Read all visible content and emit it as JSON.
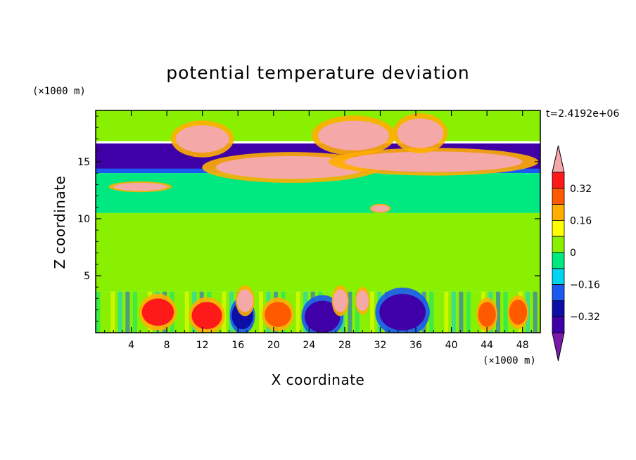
{
  "chart_data": {
    "type": "heatmap",
    "title": "potential temperature deviation",
    "xlabel": "X coordinate",
    "ylabel": "Z coordinate",
    "x_unit": "(×1000 m)",
    "y_unit": "(×1000 m)",
    "time_label": "t=2.4192e+06",
    "xlim": [
      0,
      50
    ],
    "ylim": [
      0,
      19.5
    ],
    "x_ticks": [
      4,
      8,
      12,
      16,
      20,
      24,
      28,
      32,
      36,
      40,
      44,
      48
    ],
    "x_tick_labels": [
      "4",
      "8",
      "12",
      "16",
      "20",
      "24",
      "28",
      "32",
      "36",
      "40",
      "44",
      "48"
    ],
    "y_ticks": [
      5,
      10,
      15
    ],
    "y_tick_labels": [
      "5",
      "10",
      "15"
    ],
    "colorbar": {
      "levels": [
        -0.4,
        -0.32,
        -0.24,
        -0.16,
        -0.08,
        0,
        0.08,
        0.16,
        0.24,
        0.32,
        0.4
      ],
      "labeled_levels": [
        0.32,
        0.16,
        0,
        -0.16,
        -0.32
      ],
      "labels": [
        "0.32",
        "0.16",
        "0",
        "−0.16",
        "−0.32"
      ],
      "colors": [
        "#7a1aa8",
        "#3f00a8",
        "#0d0da8",
        "#1a5af0",
        "#00d4f0",
        "#00e880",
        "#88f000",
        "#ffff00",
        "#ffae00",
        "#ff5a00",
        "#ff1a1a",
        "#f5a8a8"
      ],
      "extend": "both"
    },
    "regions": [
      {
        "kind": "band",
        "name": "upper-light-green",
        "x": [
          0,
          50
        ],
        "z": [
          16.8,
          19.5
        ],
        "value": 0.05
      },
      {
        "kind": "band",
        "name": "strat-cold-band",
        "x": [
          0,
          50
        ],
        "z": [
          14.2,
          16.6
        ],
        "value": -0.38
      },
      {
        "kind": "band",
        "name": "strat-blue-edge",
        "x": [
          0,
          50
        ],
        "z": [
          14.0,
          14.4
        ],
        "value": -0.2
      },
      {
        "kind": "band",
        "name": "mid-green",
        "x": [
          0,
          50
        ],
        "z": [
          10.5,
          14.0
        ],
        "value": -0.02
      },
      {
        "kind": "band",
        "name": "lower-light-green",
        "x": [
          0,
          50
        ],
        "z": [
          3.6,
          10.5
        ],
        "value": 0.04
      },
      {
        "kind": "band",
        "name": "boundary-layer",
        "x": [
          0,
          50
        ],
        "z": [
          0,
          3.6
        ],
        "value": 0.0
      },
      {
        "kind": "blob",
        "name": "warm-tongue-1",
        "cx": 22.0,
        "cz": 14.5,
        "rx": 8.5,
        "rz": 1.0,
        "value": 0.42
      },
      {
        "kind": "blob",
        "name": "warm-tongue-2",
        "cx": 38.0,
        "cz": 15.0,
        "rx": 10.0,
        "rz": 0.9,
        "value": 0.42
      },
      {
        "kind": "blob",
        "name": "warm-cap-1",
        "cx": 12.0,
        "cz": 17.0,
        "rx": 3.0,
        "rz": 1.2,
        "value": 0.42
      },
      {
        "kind": "blob",
        "name": "warm-cap-2",
        "cx": 29.0,
        "cz": 17.3,
        "rx": 4.0,
        "rz": 1.3,
        "value": 0.42
      },
      {
        "kind": "blob",
        "name": "warm-cap-3",
        "cx": 36.5,
        "cz": 17.5,
        "rx": 2.6,
        "rz": 1.3,
        "value": 0.42
      },
      {
        "kind": "blob",
        "name": "warm-left-1",
        "cx": 5.0,
        "cz": 12.8,
        "rx": 3.0,
        "rz": 0.35,
        "value": 0.42
      },
      {
        "kind": "blob",
        "name": "warm-small",
        "cx": 32.0,
        "cz": 10.9,
        "rx": 1.0,
        "rz": 0.3,
        "value": 0.42
      },
      {
        "kind": "blob",
        "name": "cold-cell-1",
        "cx": 25.5,
        "cz": 1.4,
        "rx": 2.0,
        "rz": 1.4,
        "value": -0.38
      },
      {
        "kind": "blob",
        "name": "cold-cell-2",
        "cx": 34.5,
        "cz": 1.8,
        "rx": 2.6,
        "rz": 1.6,
        "value": -0.38
      },
      {
        "kind": "blob",
        "name": "cold-cell-3",
        "cx": 16.5,
        "cz": 1.5,
        "rx": 1.2,
        "rz": 1.2,
        "value": -0.32
      },
      {
        "kind": "blob",
        "name": "warm-cell-1",
        "cx": 12.5,
        "cz": 1.5,
        "rx": 1.7,
        "rz": 1.2,
        "value": 0.35
      },
      {
        "kind": "blob",
        "name": "warm-cell-2",
        "cx": 7.0,
        "cz": 1.8,
        "rx": 1.8,
        "rz": 1.2,
        "value": 0.35
      },
      {
        "kind": "blob",
        "name": "warm-cell-3",
        "cx": 20.5,
        "cz": 1.6,
        "rx": 1.5,
        "rz": 1.1,
        "value": 0.3
      },
      {
        "kind": "blob",
        "name": "warm-cell-4",
        "cx": 44.0,
        "cz": 1.6,
        "rx": 1.0,
        "rz": 1.1,
        "value": 0.3
      },
      {
        "kind": "blob",
        "name": "warm-cell-5",
        "cx": 47.5,
        "cz": 1.8,
        "rx": 1.0,
        "rz": 1.1,
        "value": 0.3
      },
      {
        "kind": "blob",
        "name": "thermal-1",
        "cx": 16.8,
        "cz": 2.8,
        "rx": 0.9,
        "rz": 1.0,
        "value": 0.42
      },
      {
        "kind": "blob",
        "name": "thermal-2",
        "cx": 27.5,
        "cz": 2.8,
        "rx": 0.8,
        "rz": 1.0,
        "value": 0.42
      },
      {
        "kind": "blob",
        "name": "thermal-3",
        "cx": 30.0,
        "cz": 2.8,
        "rx": 0.7,
        "rz": 0.9,
        "value": 0.42
      }
    ]
  }
}
